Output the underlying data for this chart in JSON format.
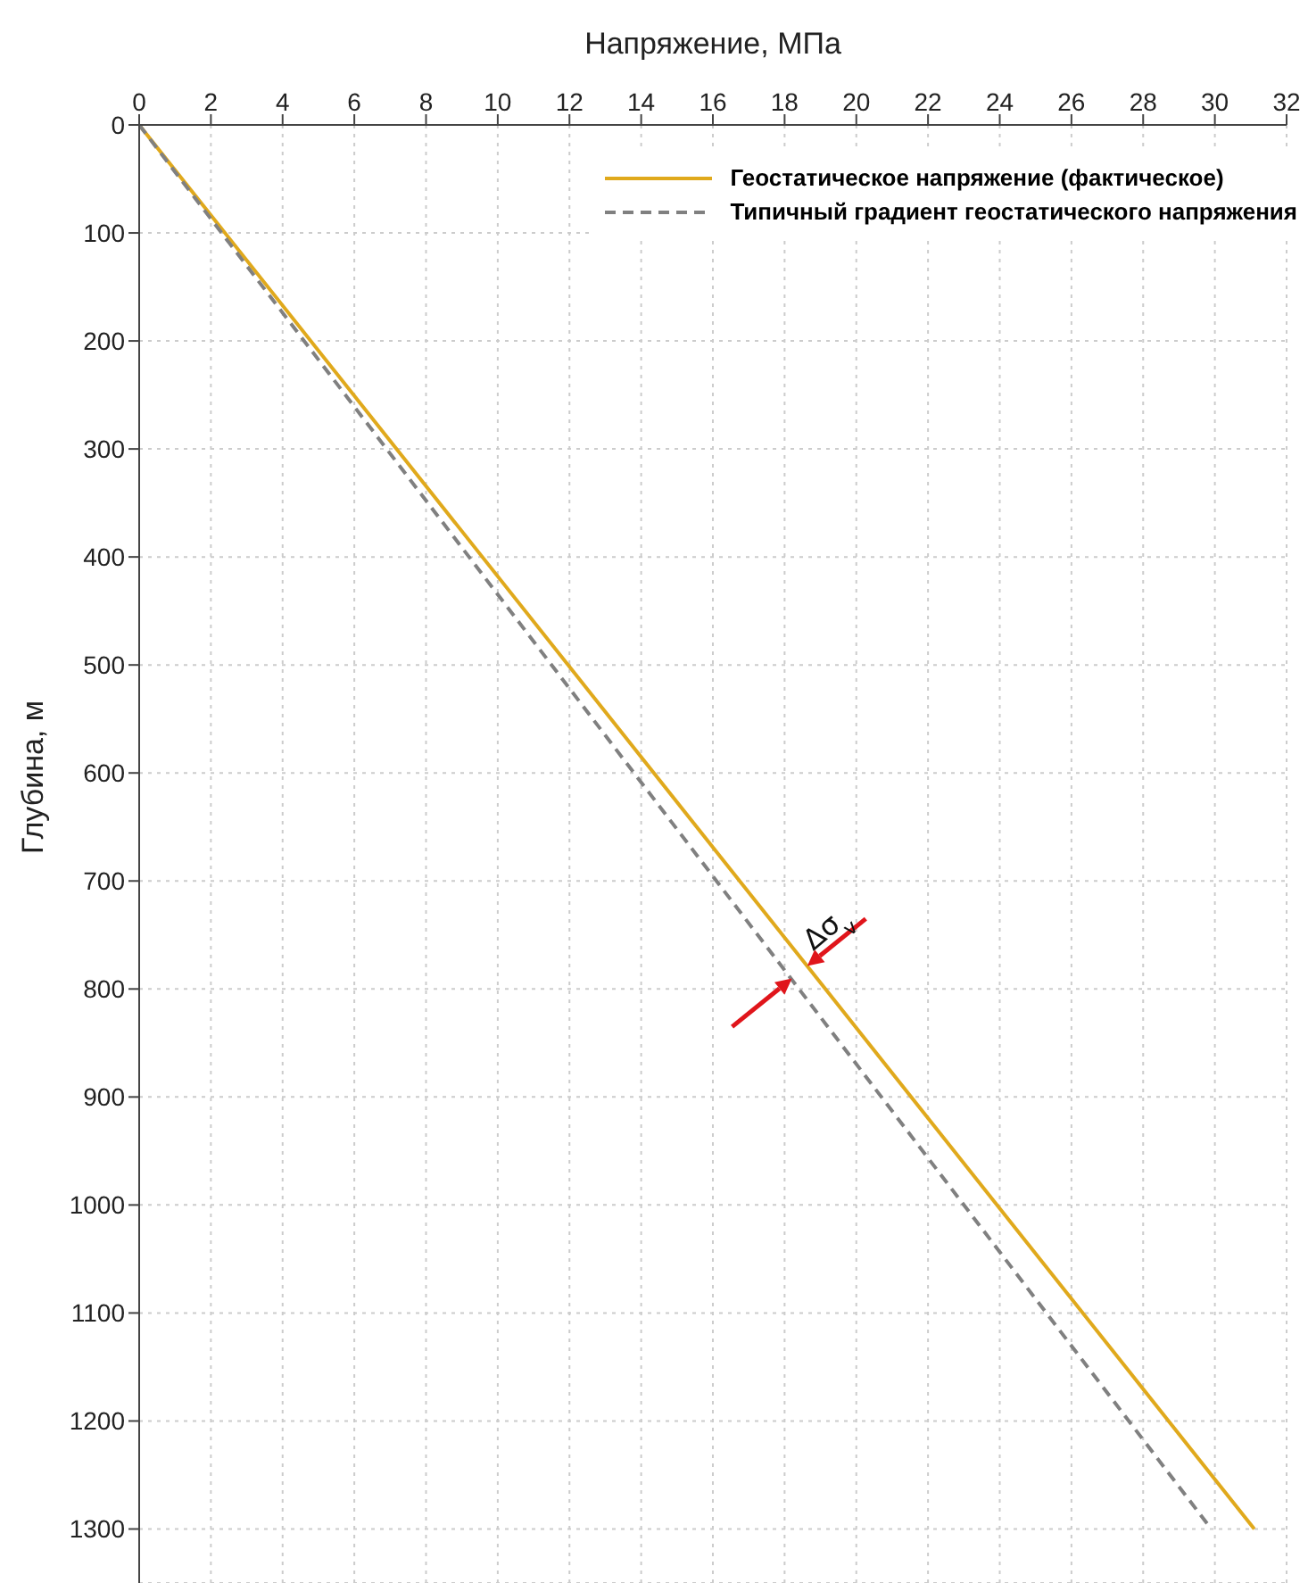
{
  "chart_data": {
    "type": "line",
    "xlabel": "Напряжение, МПа",
    "ylabel": "Глубина, м",
    "series": [
      {
        "name": "Геостатическое напряжение (фактическое)",
        "color": "#e0a91c",
        "x": [
          0,
          31.1
        ],
        "values": [
          0,
          1300
        ],
        "line_style": "solid"
      },
      {
        "name": "Типичный градиент геостатического напряжения",
        "color": "#808080",
        "x": [
          0,
          29.9
        ],
        "values": [
          0,
          1300
        ],
        "line_style": "dashed"
      }
    ],
    "xlim": [
      0,
      32
    ],
    "xticks": [
      0,
      2,
      4,
      6,
      8,
      10,
      12,
      14,
      16,
      18,
      20,
      22,
      24,
      26,
      28,
      30,
      32
    ],
    "ylim": [
      1350,
      0
    ],
    "yticks": [
      0,
      100,
      200,
      300,
      400,
      500,
      600,
      700,
      800,
      900,
      1000,
      1100,
      1200,
      1300
    ],
    "annotations": [
      {
        "text": "Δσ$_{v}$",
        "x": 18.4,
        "y": 785
      }
    ],
    "grid": true,
    "legend": "top right",
    "marker": "none"
  }
}
